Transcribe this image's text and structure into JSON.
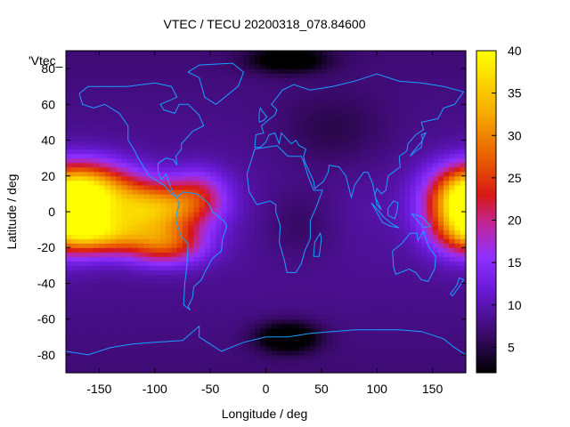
{
  "chart_data": {
    "type": "heatmap",
    "title": "VTEC / TECU 20200318_078.84600",
    "xlabel": "Longitude / deg",
    "ylabel": "Latitude / deg",
    "xlim": [
      -180,
      180
    ],
    "ylim": [
      -90,
      90
    ],
    "x_ticks": [
      -150,
      -100,
      -50,
      0,
      50,
      100,
      150
    ],
    "y_ticks": [
      -80,
      -60,
      -40,
      -20,
      0,
      20,
      40,
      60,
      80
    ],
    "colorbar": {
      "min": 2,
      "max": 40,
      "ticks": [
        5,
        10,
        15,
        20,
        25,
        30,
        35,
        40
      ]
    },
    "series_label": "'Vtec_",
    "overlay": "coastlines",
    "colors": {
      "coastline": "#1aa0ff"
    },
    "features": [
      {
        "lon": -160,
        "lat": 12,
        "amp": 24,
        "slon": 30,
        "slat": 11
      },
      {
        "lon": -100,
        "lat": 2,
        "amp": 22,
        "slon": 30,
        "slat": 10
      },
      {
        "lon": -150,
        "lat": -12,
        "amp": 20,
        "slon": 28,
        "slat": 8
      },
      {
        "lon": -90,
        "lat": -18,
        "amp": 16,
        "slon": 25,
        "slat": 8
      },
      {
        "lon": 178,
        "lat": 0,
        "amp": 24,
        "slon": 22,
        "slat": 14
      },
      {
        "lon": -60,
        "lat": 10,
        "amp": 9,
        "slon": 18,
        "slat": 10
      },
      {
        "lon": 20,
        "lat": -70,
        "amp": -9,
        "slon": 20,
        "slat": 6
      },
      {
        "lon": 20,
        "lat": 85,
        "amp": -8,
        "slon": 25,
        "slat": 5
      },
      {
        "lon": 60,
        "lat": 45,
        "amp": -3,
        "slon": 35,
        "slat": 15
      },
      {
        "lon": 30,
        "lat": -5,
        "amp": -3,
        "slon": 25,
        "slat": 15
      }
    ]
  }
}
